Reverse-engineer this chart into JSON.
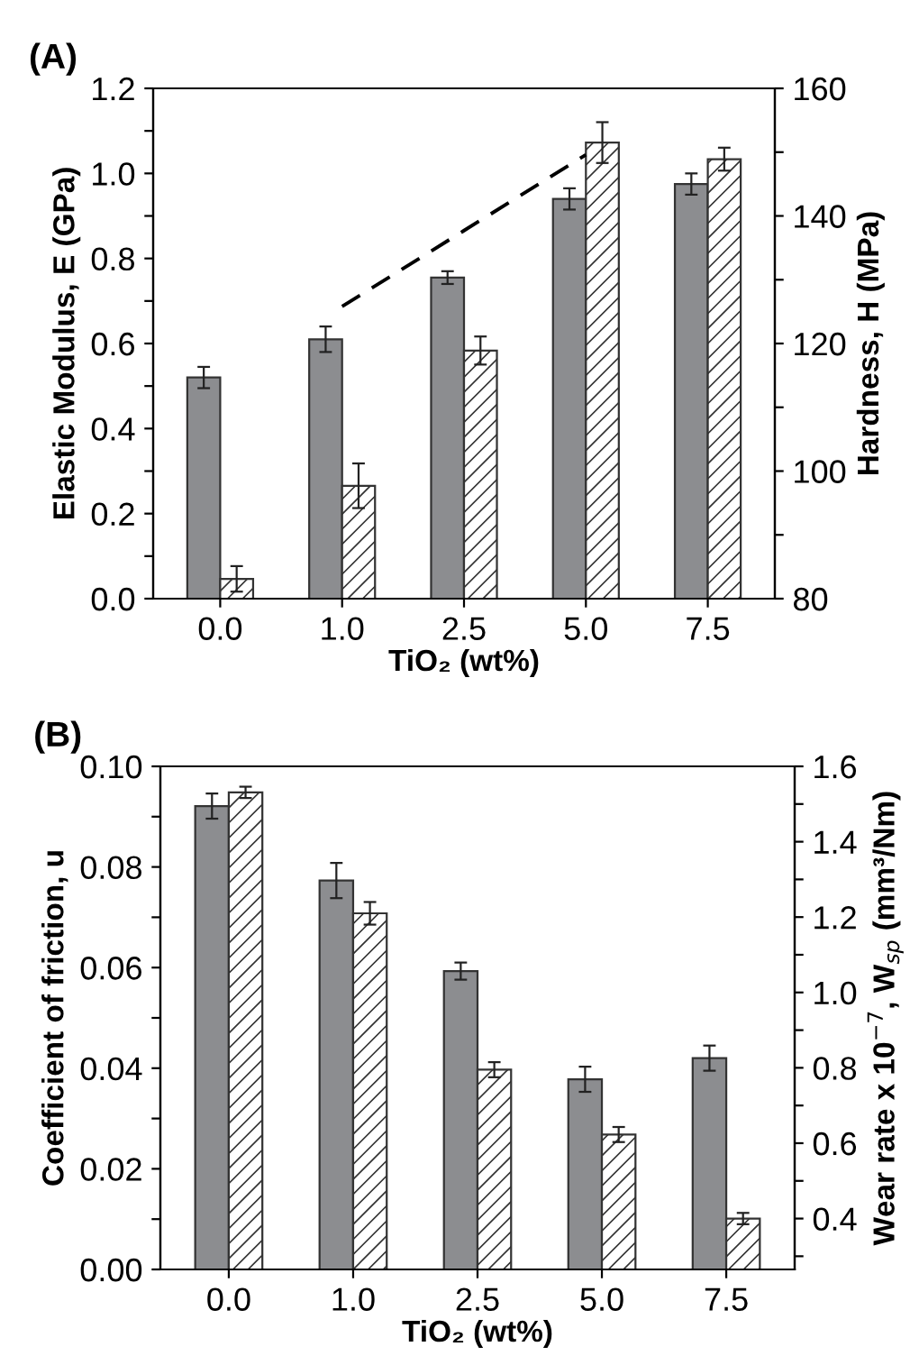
{
  "chart_data": [
    {
      "type": "bar",
      "title": "(A)",
      "xlabel": "TiO₂ (wt%)",
      "ylabel": "Elastic Modulus, E (GPa)",
      "y2label": "Hardness, H (MPa)",
      "categories": [
        "0.0",
        "1.0",
        "2.5",
        "5.0",
        "7.5"
      ],
      "ylim": [
        0,
        1.2
      ],
      "yticks": [
        {
          "value": 0,
          "label": "0.0"
        },
        {
          "value": 0.1,
          "label": null
        },
        {
          "value": 0.2,
          "label": "0.2"
        },
        {
          "value": 0.3,
          "label": null
        },
        {
          "value": 0.4,
          "label": "0.4"
        },
        {
          "value": 0.5,
          "label": null
        },
        {
          "value": 0.6,
          "label": "0.6"
        },
        {
          "value": 0.7,
          "label": null
        },
        {
          "value": 0.8,
          "label": "0.8"
        },
        {
          "value": 0.9,
          "label": null
        },
        {
          "value": 1,
          "label": "1.0"
        },
        {
          "value": 1.1,
          "label": null
        },
        {
          "value": 1.2,
          "label": "1.2"
        }
      ],
      "y2lim": [
        80,
        160
      ],
      "y2ticks": [
        80,
        {
          "value": 90,
          "label": null
        },
        100,
        {
          "value": 110,
          "label": null
        },
        120,
        {
          "value": 130,
          "label": null
        },
        140,
        {
          "value": 150,
          "label": null
        },
        160
      ],
      "grid": false,
      "legend": false,
      "series": [
        {
          "color": "#8c8d90",
          "values": [
            0.52,
            0.61,
            0.755,
            0.94,
            0.975
          ],
          "errors": [
            0.025,
            0.03,
            0.015,
            0.025,
            0.025
          ]
        },
        {
          "axis": "y2",
          "color": "#333333",
          "values": [
            83.1,
            97.7,
            118.9,
            151.5,
            148.9
          ],
          "errors": [
            2,
            3.5,
            2.2,
            3.2,
            1.8
          ]
        },
        {
          "type": "line",
          "axis": "y2",
          "color": "#000000",
          "line_style": "dashed",
          "marker": "none",
          "values": [
            null,
            125.8,
            137.7,
            149.6,
            null
          ]
        }
      ]
    },
    {
      "type": "bar",
      "title": "(B)",
      "xlabel": "TiO₂ (wt%)",
      "ylabel": "Coefficient of friction, u",
      "y2label": "Wear rate x 10$^{−7}$, W$_{sp}$ (mm³/Nm)",
      "categories": [
        "0.0",
        "1.0",
        "2.5",
        "5.0",
        "7.5"
      ],
      "ylim": [
        0,
        0.1
      ],
      "yticks": [
        {
          "value": 0,
          "label": "0.00"
        },
        {
          "value": 0.01,
          "label": null
        },
        {
          "value": 0.02,
          "label": "0.02"
        },
        {
          "value": 0.03,
          "label": null
        },
        {
          "value": 0.04,
          "label": "0.04"
        },
        {
          "value": 0.05,
          "label": null
        },
        {
          "value": 0.06,
          "label": "0.06"
        },
        {
          "value": 0.07,
          "label": null
        },
        {
          "value": 0.08,
          "label": "0.08"
        },
        {
          "value": 0.09,
          "label": null
        },
        {
          "value": 0.1,
          "label": "0.10"
        }
      ],
      "y2lim": [
        0.265,
        1.6
      ],
      "y2ticks": [
        {
          "value": 0.3,
          "label": null
        },
        {
          "value": 0.4,
          "label": "0.4"
        },
        {
          "value": 0.5,
          "label": null
        },
        {
          "value": 0.6,
          "label": "0.6"
        },
        {
          "value": 0.7,
          "label": null
        },
        {
          "value": 0.8,
          "label": "0.8"
        },
        {
          "value": 0.9,
          "label": null
        },
        {
          "value": 1,
          "label": "1.0"
        },
        {
          "value": 1.1,
          "label": null
        },
        {
          "value": 1.2,
          "label": "1.2"
        },
        {
          "value": 1.3,
          "label": null
        },
        {
          "value": 1.4,
          "label": "1.4"
        },
        {
          "value": 1.5,
          "label": null
        },
        {
          "value": 1.6,
          "label": "1.6"
        }
      ],
      "grid": false,
      "legend": false,
      "series": [
        {
          "color": "#8c8d90",
          "values": [
            0.0921,
            0.0773,
            0.0593,
            0.0378,
            0.042
          ],
          "errors": [
            0.0025,
            0.0035,
            0.0017,
            0.0025,
            0.0025
          ]
        },
        {
          "axis": "y2",
          "color": "#333333",
          "values": [
            1.531,
            1.21,
            0.795,
            0.623,
            0.4
          ],
          "errors": [
            0.015,
            0.03,
            0.02,
            0.02,
            0.015
          ]
        }
      ]
    }
  ]
}
